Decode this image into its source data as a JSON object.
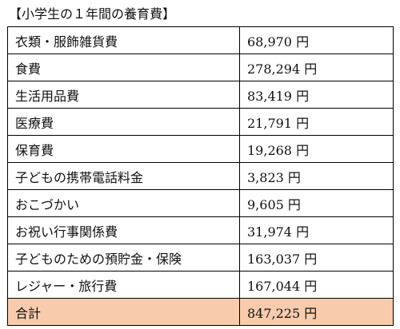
{
  "title": "【小学生の１年間の養育費】",
  "accent_colors": {
    "total_row_bg": "#f8cbad",
    "border": "#000000"
  },
  "rows": [
    {
      "item": "衣類・服飾雑貨費",
      "amount": "68,970 円"
    },
    {
      "item": "食費",
      "amount": "278,294 円"
    },
    {
      "item": "生活用品費",
      "amount": "83,419 円"
    },
    {
      "item": "医療費",
      "amount": "21,791 円"
    },
    {
      "item": "保育費",
      "amount": "19,268 円"
    },
    {
      "item": "子どもの携帯電話料金",
      "amount": "3,823 円"
    },
    {
      "item": "おこづかい",
      "amount": "9,605 円"
    },
    {
      "item": "お祝い行事関係費",
      "amount": "31,974 円"
    },
    {
      "item": "子どものための預貯金・保険",
      "amount": "163,037 円"
    },
    {
      "item": "レジャー・旅行費",
      "amount": "167,044 円"
    }
  ],
  "total": {
    "item": "合計",
    "amount": "847,225 円"
  }
}
